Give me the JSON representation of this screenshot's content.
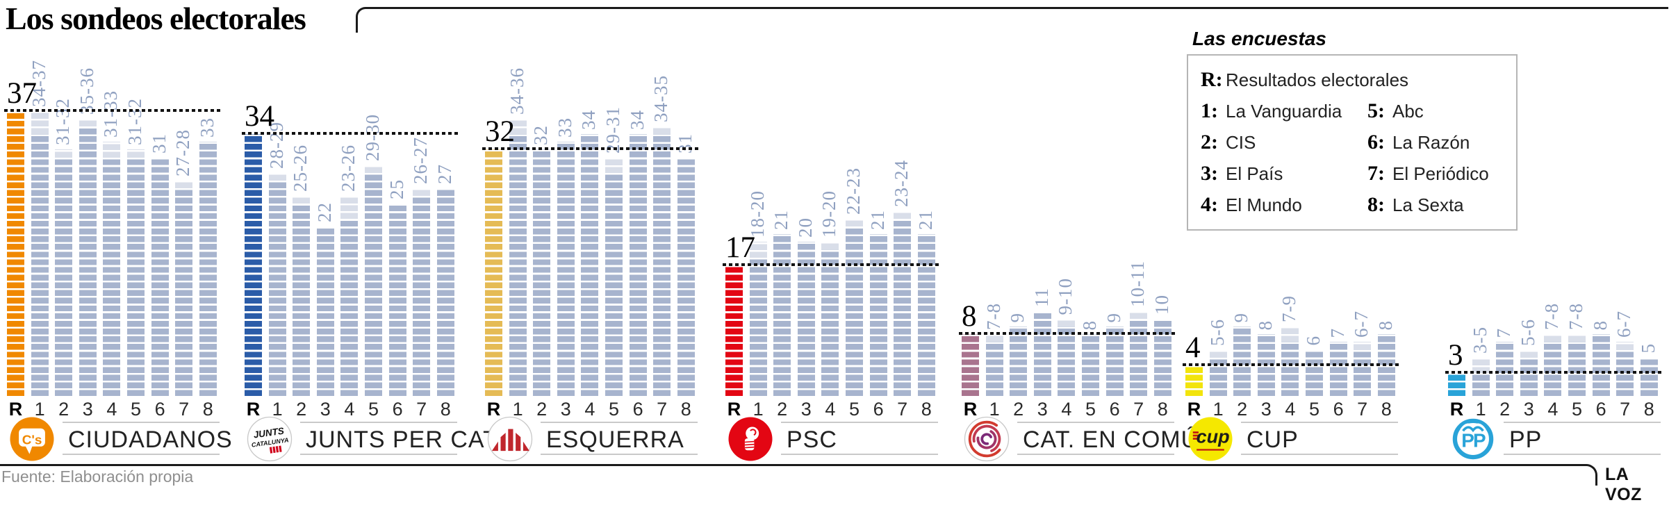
{
  "title": "Los sondeos electorales",
  "source": "Fuente: Elaboración propia",
  "credit": "LA VOZ",
  "legend": {
    "title": "Las encuestas",
    "entries": [
      {
        "key": "R:",
        "label": "Resultados electorales"
      },
      {
        "key": "1:",
        "label": "La Vanguardia"
      },
      {
        "key": "2:",
        "label": "CIS"
      },
      {
        "key": "3:",
        "label": "El País"
      },
      {
        "key": "4:",
        "label": "El Mundo"
      },
      {
        "key": "5:",
        "label": "Abc"
      },
      {
        "key": "6:",
        "label": "La Razón"
      },
      {
        "key": "7:",
        "label": "El Periódico"
      },
      {
        "key": "8:",
        "label": "La Sexta"
      }
    ]
  },
  "chart_data": {
    "type": "bar",
    "title": "Los sondeos electorales",
    "x_axis": [
      "R",
      "1",
      "2",
      "3",
      "4",
      "5",
      "6",
      "7",
      "8"
    ],
    "ylim": [
      0,
      37
    ],
    "bar_colors": {
      "poll_min": "#a7b4ce",
      "poll_range": "#d9dee9"
    },
    "parties": [
      {
        "name": "CIUDADANOS",
        "logo": "ciudadanos-logo",
        "logo_text": "C's",
        "color": "#F08800",
        "result": 37,
        "polls": [
          {
            "poll": "1",
            "label": "34-37",
            "min": 34,
            "max": 37
          },
          {
            "poll": "2",
            "label": "31-32",
            "min": 31,
            "max": 32
          },
          {
            "poll": "3",
            "label": "35-36",
            "min": 35,
            "max": 36
          },
          {
            "poll": "4",
            "label": "31-33",
            "min": 31,
            "max": 33
          },
          {
            "poll": "5",
            "label": "31-32",
            "min": 31,
            "max": 32
          },
          {
            "poll": "6",
            "label": "31",
            "min": 31,
            "max": 31
          },
          {
            "poll": "7",
            "label": "27-28",
            "min": 27,
            "max": 28
          },
          {
            "poll": "8",
            "label": "33",
            "min": 33,
            "max": 33
          }
        ]
      },
      {
        "name": "JUNTS PER CAT.",
        "logo": "junts-per-cat-logo",
        "logo_text": "JUNTS CATALUNYA",
        "color": "#2B5CA8",
        "result": 34,
        "polls": [
          {
            "poll": "1",
            "label": "28-29",
            "min": 28,
            "max": 29
          },
          {
            "poll": "2",
            "label": "25-26",
            "min": 25,
            "max": 26
          },
          {
            "poll": "3",
            "label": "22",
            "min": 22,
            "max": 22
          },
          {
            "poll": "4",
            "label": "23-26",
            "min": 23,
            "max": 26
          },
          {
            "poll": "5",
            "label": "29-30",
            "min": 29,
            "max": 30
          },
          {
            "poll": "6",
            "label": "25",
            "min": 25,
            "max": 25
          },
          {
            "poll": "7",
            "label": "26-27",
            "min": 26,
            "max": 27
          },
          {
            "poll": "8",
            "label": "27",
            "min": 27,
            "max": 27
          }
        ]
      },
      {
        "name": "ESQUERRA",
        "logo": "esquerra-logo",
        "logo_text": "",
        "color": "#E5BB55",
        "result": 32,
        "polls": [
          {
            "poll": "1",
            "label": "34-36",
            "min": 34,
            "max": 36
          },
          {
            "poll": "2",
            "label": "32",
            "min": 32,
            "max": 32
          },
          {
            "poll": "3",
            "label": "33",
            "min": 33,
            "max": 33
          },
          {
            "poll": "4",
            "label": "34",
            "min": 34,
            "max": 34
          },
          {
            "poll": "5",
            "label": "29-31",
            "min": 29,
            "max": 31
          },
          {
            "poll": "6",
            "label": "34",
            "min": 34,
            "max": 34
          },
          {
            "poll": "7",
            "label": "34-35",
            "min": 34,
            "max": 35
          },
          {
            "poll": "8",
            "label": "31",
            "min": 31,
            "max": 31
          }
        ]
      },
      {
        "name": "PSC",
        "logo": "psc-logo",
        "logo_text": "",
        "color": "#E30613",
        "result": 17,
        "polls": [
          {
            "poll": "1",
            "label": "18-20",
            "min": 18,
            "max": 20
          },
          {
            "poll": "2",
            "label": "21",
            "min": 21,
            "max": 21
          },
          {
            "poll": "3",
            "label": "20",
            "min": 20,
            "max": 20
          },
          {
            "poll": "4",
            "label": "19-20",
            "min": 19,
            "max": 20
          },
          {
            "poll": "5",
            "label": "22-23",
            "min": 22,
            "max": 23
          },
          {
            "poll": "6",
            "label": "21",
            "min": 21,
            "max": 21
          },
          {
            "poll": "7",
            "label": "23-24",
            "min": 23,
            "max": 24
          },
          {
            "poll": "8",
            "label": "21",
            "min": 21,
            "max": 21
          }
        ]
      },
      {
        "name": "CAT. EN COMÚ",
        "logo": "cat-en-comu-logo",
        "logo_text": "",
        "color": "#A9748E",
        "result": 8,
        "polls": [
          {
            "poll": "1",
            "label": "7-8",
            "min": 7,
            "max": 8
          },
          {
            "poll": "2",
            "label": "9",
            "min": 9,
            "max": 9
          },
          {
            "poll": "3",
            "label": "11",
            "min": 11,
            "max": 11
          },
          {
            "poll": "4",
            "label": "9-10",
            "min": 9,
            "max": 10
          },
          {
            "poll": "5",
            "label": "8",
            "min": 8,
            "max": 8
          },
          {
            "poll": "6",
            "label": "9",
            "min": 9,
            "max": 9
          },
          {
            "poll": "7",
            "label": "10-11",
            "min": 10,
            "max": 11
          },
          {
            "poll": "8",
            "label": "10",
            "min": 10,
            "max": 10
          }
        ]
      },
      {
        "name": "CUP",
        "logo": "cup-logo",
        "logo_text": "cup",
        "color": "#F2E40C",
        "result": 4,
        "polls": [
          {
            "poll": "1",
            "label": "5-6",
            "min": 5,
            "max": 6
          },
          {
            "poll": "2",
            "label": "9",
            "min": 9,
            "max": 9
          },
          {
            "poll": "3",
            "label": "8",
            "min": 8,
            "max": 8
          },
          {
            "poll": "4",
            "label": "7-9",
            "min": 7,
            "max": 9
          },
          {
            "poll": "5",
            "label": "6",
            "min": 6,
            "max": 6
          },
          {
            "poll": "6",
            "label": "7",
            "min": 7,
            "max": 7
          },
          {
            "poll": "7",
            "label": "6-7",
            "min": 6,
            "max": 7
          },
          {
            "poll": "8",
            "label": "8",
            "min": 8,
            "max": 8
          }
        ]
      },
      {
        "name": "PP",
        "logo": "pp-logo",
        "logo_text": "PP",
        "color": "#29A3D8",
        "result": 3,
        "polls": [
          {
            "poll": "1",
            "label": "3-5",
            "min": 3,
            "max": 5
          },
          {
            "poll": "2",
            "label": "7",
            "min": 7,
            "max": 7
          },
          {
            "poll": "3",
            "label": "5-6",
            "min": 5,
            "max": 6
          },
          {
            "poll": "4",
            "label": "7-8",
            "min": 7,
            "max": 8
          },
          {
            "poll": "5",
            "label": "7-8",
            "min": 7,
            "max": 8
          },
          {
            "poll": "6",
            "label": "8",
            "min": 8,
            "max": 8
          },
          {
            "poll": "7",
            "label": "6-7",
            "min": 6,
            "max": 7
          },
          {
            "poll": "8",
            "label": "5",
            "min": 5,
            "max": 5
          }
        ]
      }
    ]
  }
}
